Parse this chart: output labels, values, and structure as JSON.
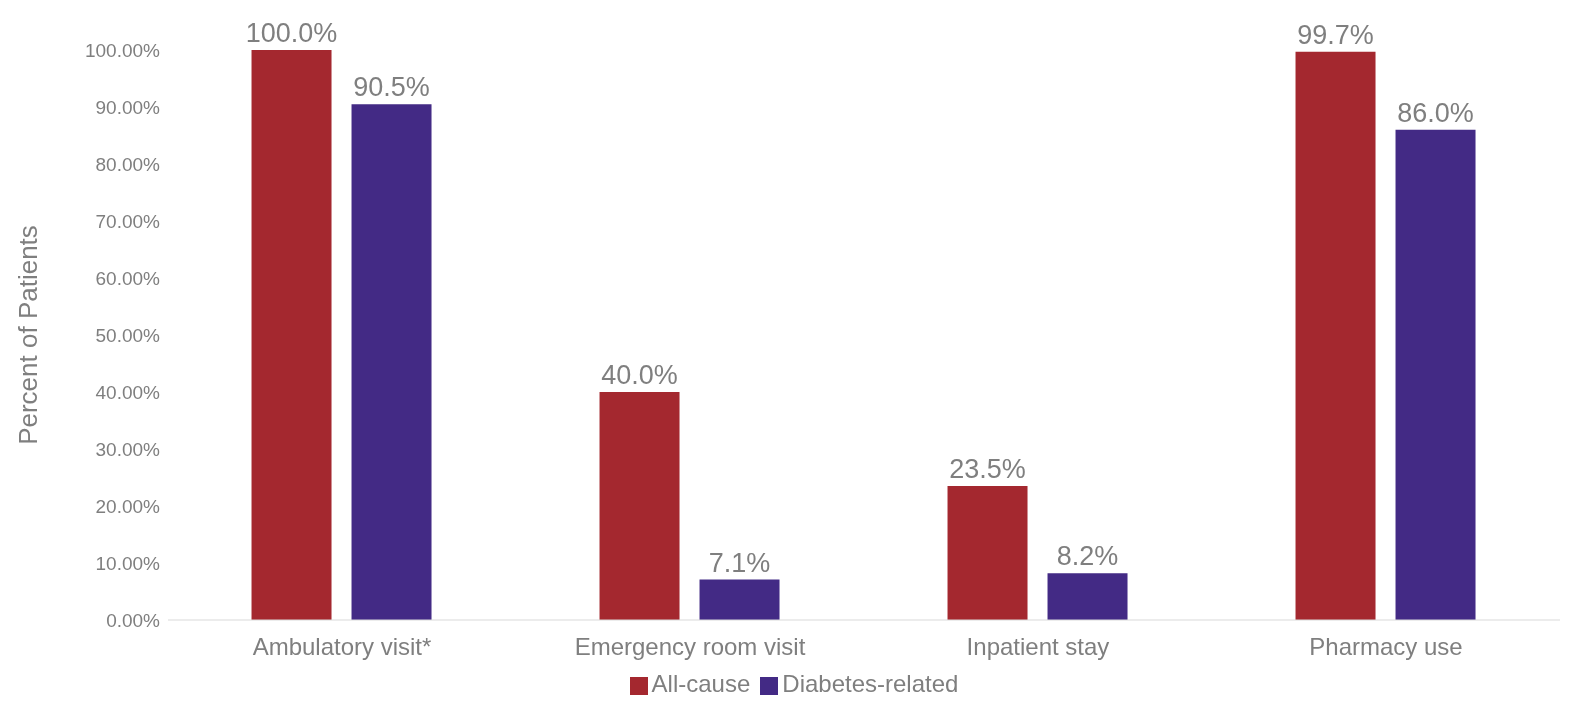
{
  "chart_data": {
    "type": "bar",
    "ylabel": "Percent of Patients",
    "categories": [
      "Ambulatory visit*",
      "Emergency room visit",
      "Inpatient stay",
      "Pharmacy use"
    ],
    "series": [
      {
        "name": "All-cause",
        "color": "#a4282f",
        "values": [
          100.0,
          40.0,
          23.5,
          99.7
        ],
        "value_labels": [
          "100.0%",
          "40.0%",
          "23.5%",
          "99.7%"
        ]
      },
      {
        "name": "Diabetes-related",
        "color": "#432a85",
        "values": [
          90.5,
          7.1,
          8.2,
          86.0
        ],
        "value_labels": [
          "90.5%",
          "7.1%",
          "8.2%",
          "86.0%"
        ]
      }
    ],
    "ylim": [
      0,
      100
    ],
    "yticks": [
      {
        "value": 0,
        "label": "0.00%"
      },
      {
        "value": 10,
        "label": "10.00%"
      },
      {
        "value": 20,
        "label": "20.00%"
      },
      {
        "value": 30,
        "label": "30.00%"
      },
      {
        "value": 40,
        "label": "40.00%"
      },
      {
        "value": 50,
        "label": "50.00%"
      },
      {
        "value": 60,
        "label": "60.00%"
      },
      {
        "value": 70,
        "label": "70.00%"
      },
      {
        "value": 80,
        "label": "80.00%"
      },
      {
        "value": 90,
        "label": "90.00%"
      },
      {
        "value": 100,
        "label": "100.00%"
      }
    ],
    "grid": false,
    "legend": "bottom"
  }
}
